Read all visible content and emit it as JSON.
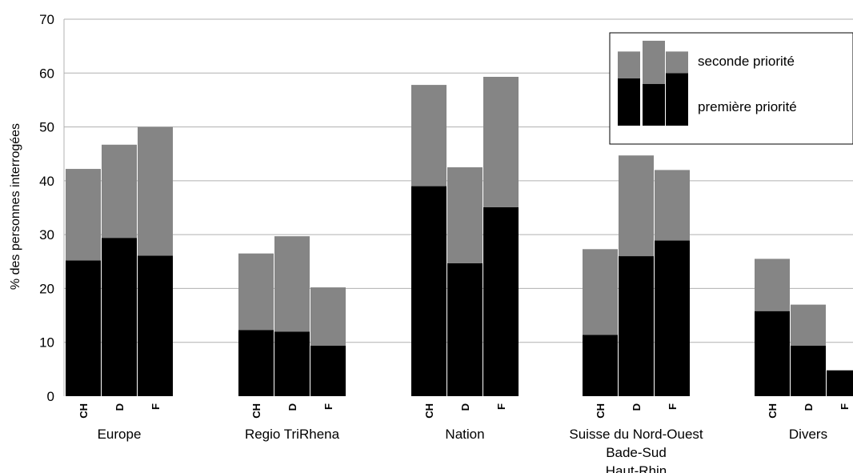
{
  "chart_data": {
    "type": "bar",
    "stacked": true,
    "ylabel": "% des personnes interrogées",
    "ylim": [
      0,
      70
    ],
    "yticks": [
      0,
      10,
      20,
      30,
      40,
      50,
      60,
      70
    ],
    "grid": "horizontal",
    "legend_position": "top-right",
    "groups": [
      {
        "label_lines": [
          "Europe"
        ],
        "subcategories": [
          "CH",
          "D",
          "F"
        ]
      },
      {
        "label_lines": [
          "Regio TriRhena"
        ],
        "subcategories": [
          "CH",
          "D",
          "F"
        ]
      },
      {
        "label_lines": [
          "Nation"
        ],
        "subcategories": [
          "CH",
          "D",
          "F"
        ]
      },
      {
        "label_lines": [
          "Suisse du Nord-Ouest",
          "Bade-Sud",
          "Haut-Rhin"
        ],
        "subcategories": [
          "CH",
          "D",
          "F"
        ]
      },
      {
        "label_lines": [
          "Divers"
        ],
        "subcategories": [
          "CH",
          "D",
          "F"
        ]
      }
    ],
    "series": [
      {
        "name": "première priorité",
        "color": "#000000",
        "values": [
          [
            25.2,
            29.4,
            26.1
          ],
          [
            12.3,
            12.0,
            9.4
          ],
          [
            39.0,
            24.7,
            35.1
          ],
          [
            11.4,
            26.0,
            28.9
          ],
          [
            15.8,
            9.4,
            4.8
          ]
        ]
      },
      {
        "name": "seconde priorité",
        "color": "#858585",
        "values": [
          [
            17.0,
            17.3,
            23.9
          ],
          [
            14.2,
            17.7,
            10.8
          ],
          [
            18.8,
            17.8,
            24.2
          ],
          [
            15.9,
            18.7,
            13.1
          ],
          [
            9.7,
            7.6,
            0
          ]
        ]
      }
    ],
    "legend_sample": {
      "premiere": [
        59,
        58,
        60
      ],
      "seconde": [
        5,
        8,
        4
      ]
    }
  }
}
